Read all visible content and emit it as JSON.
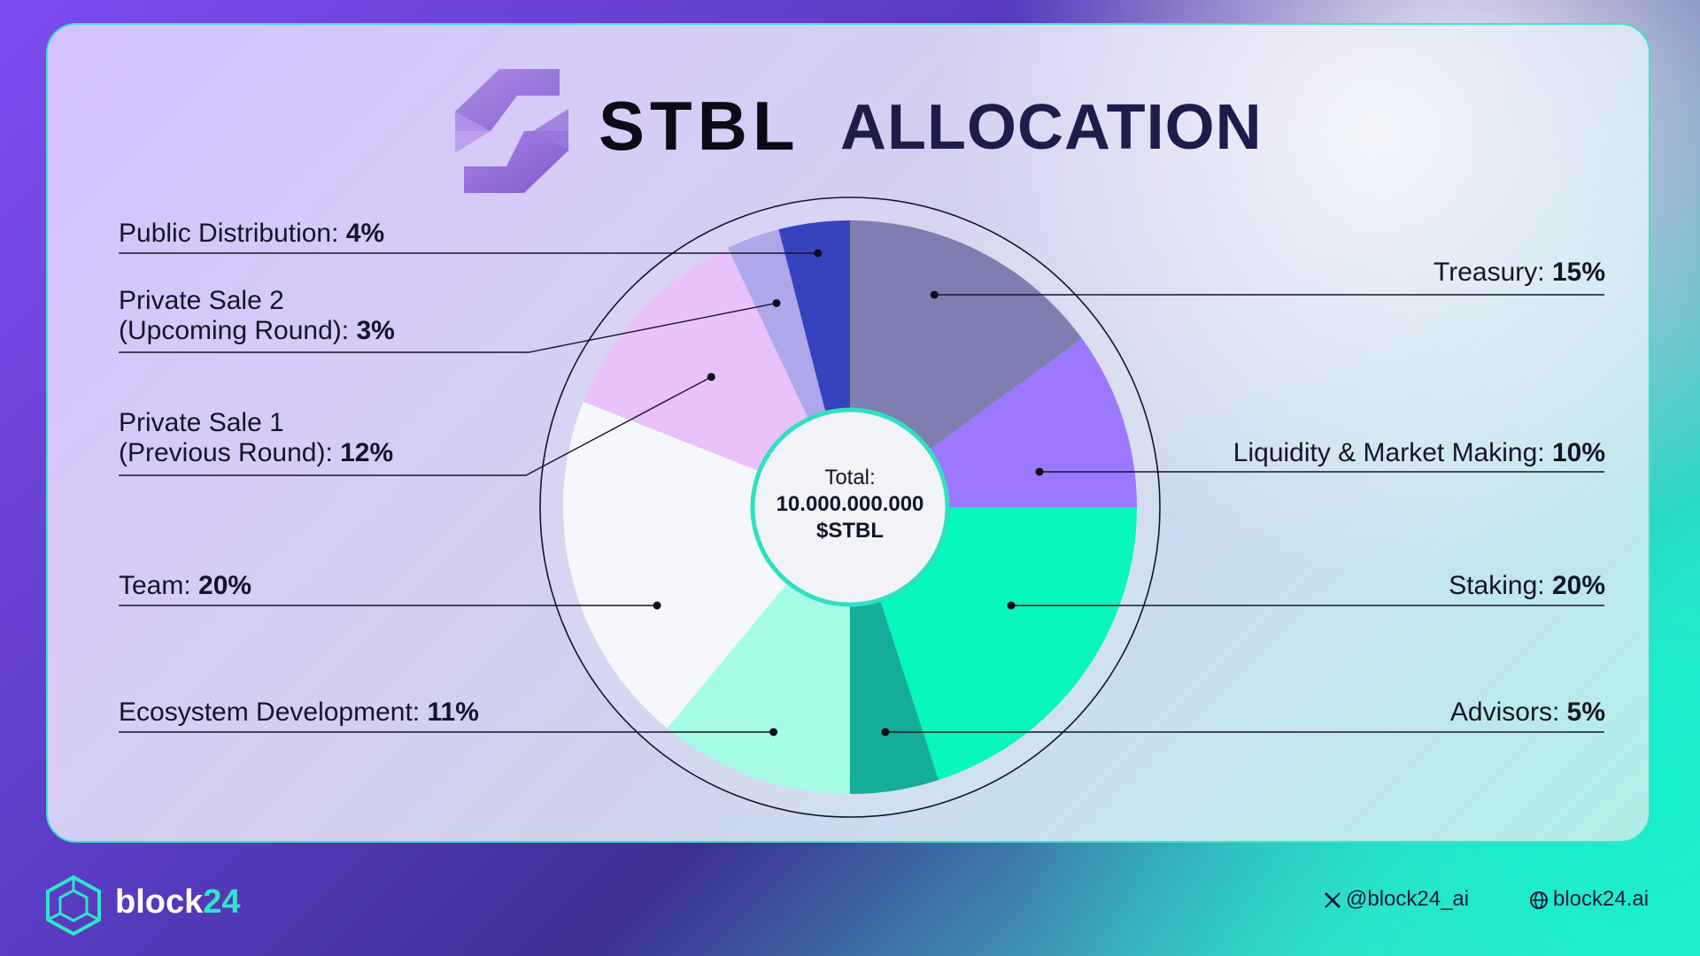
{
  "header": {
    "title_main": "STBL",
    "title_sub": "ALLOCATION",
    "logo_icon": "stbl-logo-icon"
  },
  "center": {
    "line1": "Total:",
    "line2": "10.000.000.000",
    "line3": "$STBL"
  },
  "chart_data": {
    "type": "pie",
    "title": "STBL ALLOCATION",
    "total": "10.000.000.000 $STBL",
    "slices": [
      {
        "name": "Treasury",
        "value": 15,
        "label": "Treasury:",
        "pct": "15%",
        "color": "#7e7eb1"
      },
      {
        "name": "Liquidity & Market Making",
        "value": 10,
        "label": "Liquidity & Market Making:",
        "pct": "10%",
        "color": "#9b78ff"
      },
      {
        "name": "Staking",
        "value": 20,
        "label": "Staking:",
        "pct": "20%",
        "color": "#07f7bd"
      },
      {
        "name": "Advisors",
        "value": 5,
        "label": "Advisors:",
        "pct": "5%",
        "color": "#13ad9a"
      },
      {
        "name": "Ecosystem Development",
        "value": 11,
        "label": "Ecosystem Development:",
        "pct": "11%",
        "color": "#a6fbe5"
      },
      {
        "name": "Team",
        "value": 20,
        "label": "Team:",
        "pct": "20%",
        "color": "#f6f7fc"
      },
      {
        "name": "Private Sale 1 (Previous Round)",
        "value": 12,
        "label_line1": "Private Sale 1",
        "label": "(Previous Round):",
        "pct": "12%",
        "color": "#e9c2fb"
      },
      {
        "name": "Private Sale 2 (Upcoming Round)",
        "value": 3,
        "label_line1": "Private Sale 2",
        "label": "(Upcoming Round):",
        "pct": "3%",
        "color": "#afa7eb"
      },
      {
        "name": "Public Distribution",
        "value": 4,
        "label": "Public Distribution:",
        "pct": "4%",
        "color": "#3743bd"
      }
    ]
  },
  "footer": {
    "brand_part1": "block",
    "brand_part2": "24",
    "twitter": "@block24_ai",
    "website": "block24.ai",
    "logo_icon": "block24-cube-icon",
    "twitter_icon": "x-icon",
    "web_icon": "globe-icon"
  }
}
